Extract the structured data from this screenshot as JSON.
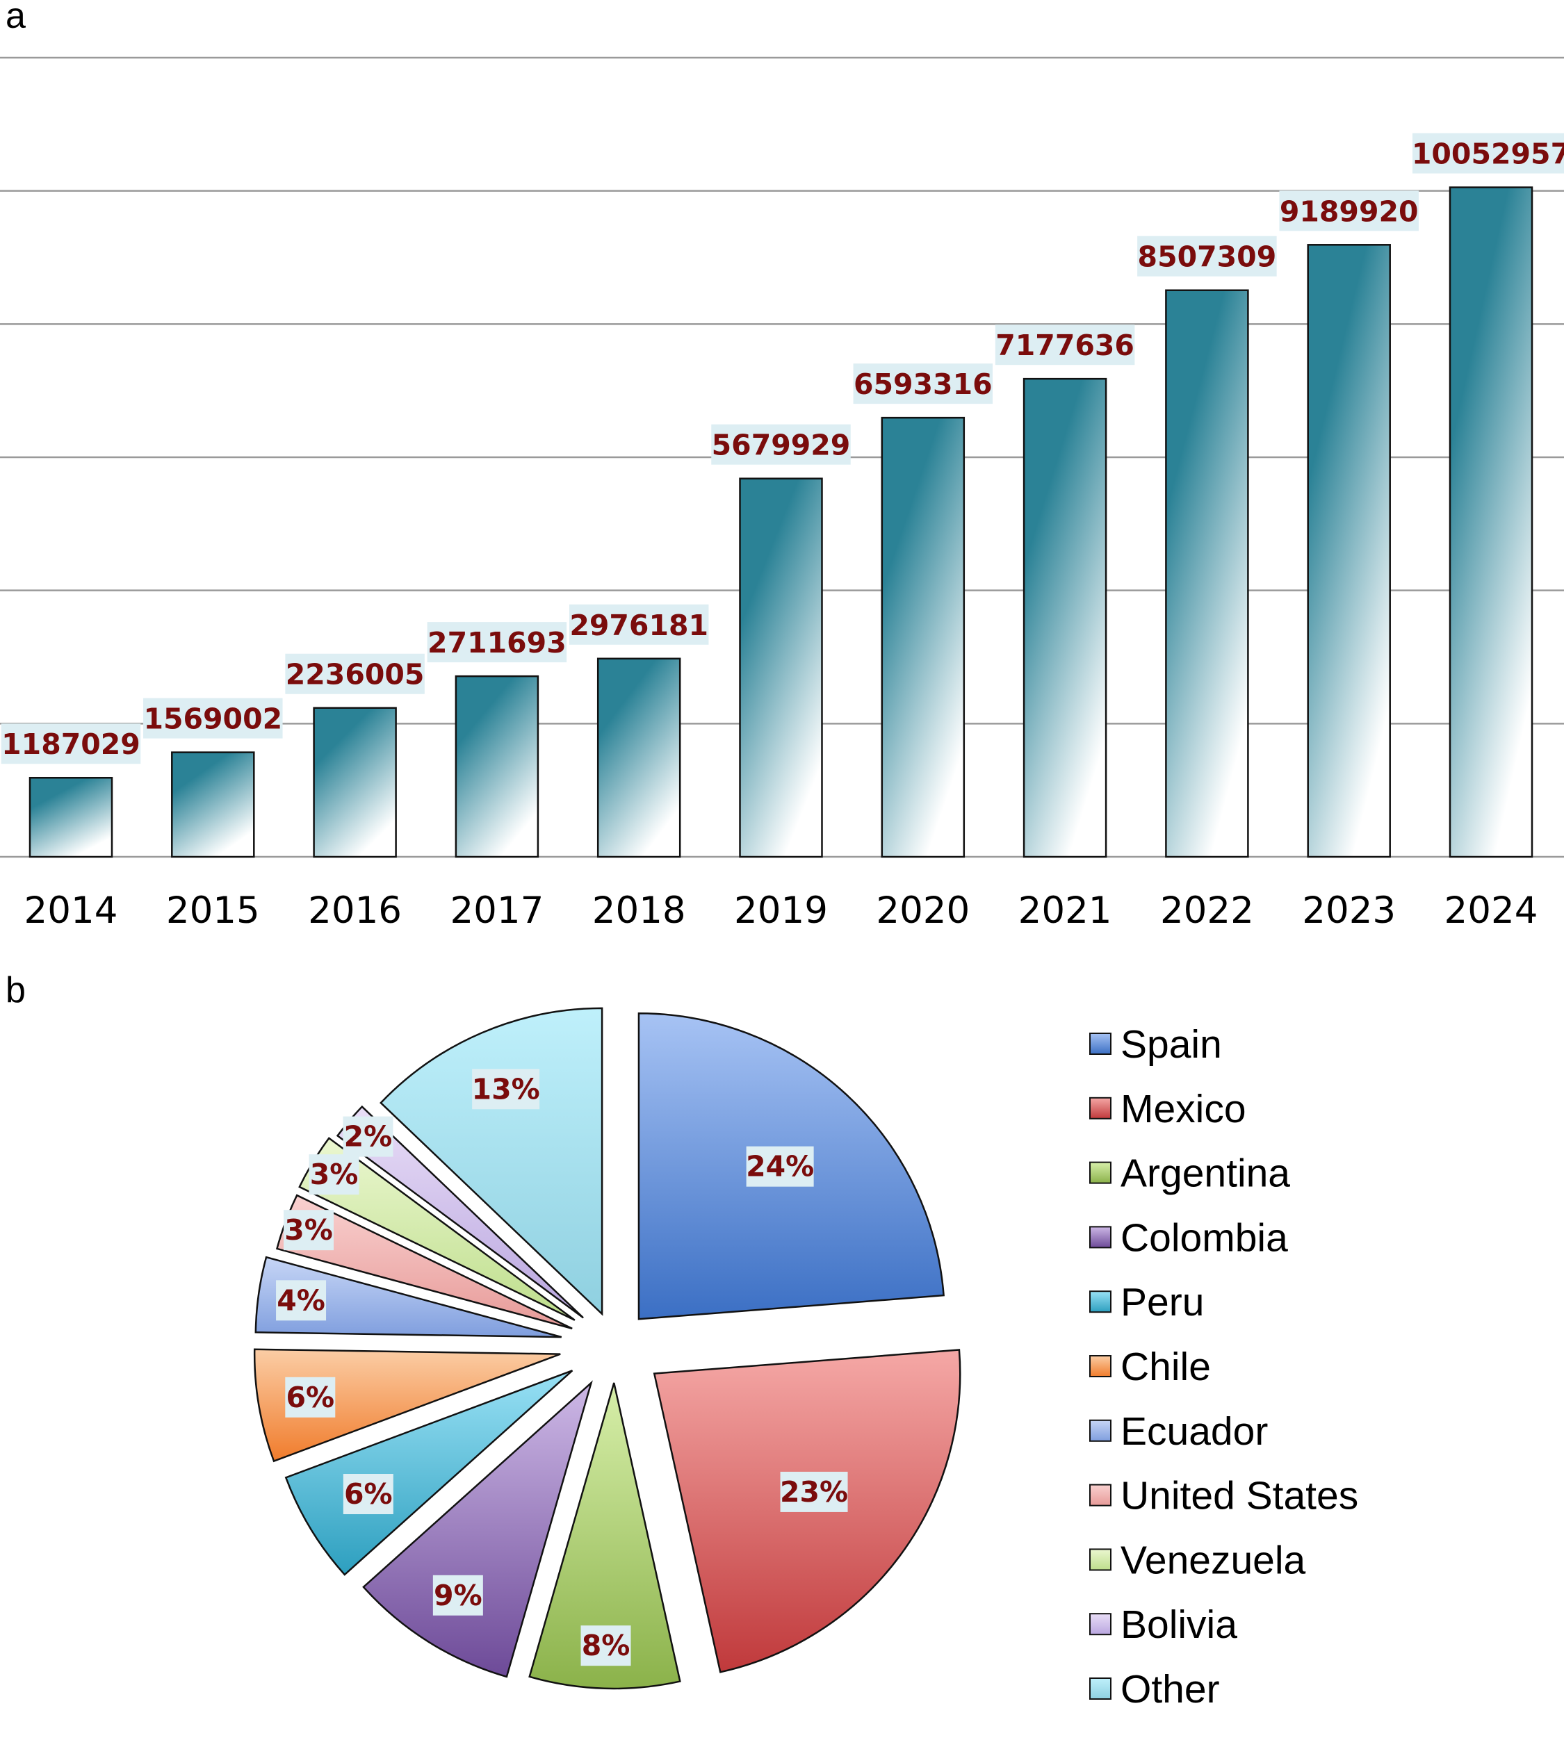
{
  "panel_a_label": "a",
  "panel_b_label": "b",
  "chart_data": [
    {
      "type": "bar",
      "panel": "a",
      "categories": [
        "2014",
        "2015",
        "2016",
        "2017",
        "2018",
        "2019",
        "2020",
        "2021",
        "2022",
        "2023",
        "2024"
      ],
      "values": [
        1187029,
        1569002,
        2236005,
        2711693,
        2976181,
        5679929,
        6593316,
        7177636,
        8507309,
        9189920,
        10052957
      ],
      "title": "",
      "xlabel": "",
      "ylabel": "",
      "ylim": [
        0,
        12000000
      ],
      "grid": true,
      "gridlines": [
        0,
        2000000,
        4000000,
        6000000,
        8000000,
        10000000,
        12000000
      ],
      "colors": {
        "bar_top": "#2b8296",
        "bar_bottom": "#ffffff",
        "label_text": "#7a0c0c",
        "label_bg": "#ddeef3"
      }
    },
    {
      "type": "pie",
      "panel": "b",
      "slices": [
        {
          "name": "Spain",
          "percent": 24,
          "label": "24%",
          "color": "#3b6fc4",
          "light": "#a7c3f4"
        },
        {
          "name": "Mexico",
          "percent": 23,
          "label": "23%",
          "color": "#c0393b",
          "light": "#f5a8a6"
        },
        {
          "name": "Argentina",
          "percent": 8,
          "label": "8%",
          "color": "#8bb24a",
          "light": "#d7efaa"
        },
        {
          "name": "Colombia",
          "percent": 9,
          "label": "9%",
          "color": "#6d4a98",
          "light": "#cdb8e6"
        },
        {
          "name": "Peru",
          "percent": 6,
          "label": "6%",
          "color": "#2d9fbf",
          "light": "#99e1f5"
        },
        {
          "name": "Chile",
          "percent": 6,
          "label": "6%",
          "color": "#f07c2c",
          "light": "#fbcda5"
        },
        {
          "name": "Ecuador",
          "percent": 4,
          "label": "4%",
          "color": "#7f9ede",
          "light": "#c7d6f6"
        },
        {
          "name": "United States",
          "percent": 3,
          "label": "3%",
          "color": "#e79a98",
          "light": "#f9d1d0"
        },
        {
          "name": "Venezuela",
          "percent": 3,
          "label": "3%",
          "color": "#bede8c",
          "light": "#ebf7d0"
        },
        {
          "name": "Bolivia",
          "percent": 2,
          "label": "2%",
          "color": "#b9a6df",
          "light": "#e9def7"
        },
        {
          "name": "Other",
          "percent": 13,
          "label": "13%",
          "color": "#8fd0e0",
          "light": "#bff0fb"
        }
      ],
      "legend": [
        "Spain",
        "Mexico",
        "Argentina",
        "Colombia",
        "Peru",
        "Chile",
        "Ecuador",
        "United States",
        "Venezuela",
        "Bolivia",
        "Other"
      ],
      "legend_position": "right"
    }
  ]
}
